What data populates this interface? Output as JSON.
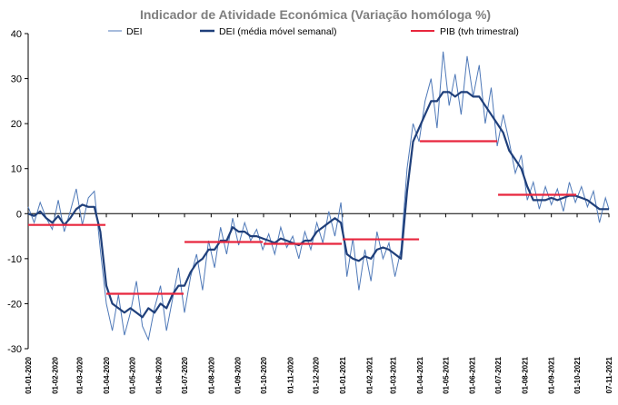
{
  "chart_data": {
    "type": "line",
    "title": "Indicador de Atividade Económica (Variação homóloga %)",
    "xlabel": "",
    "ylabel": "",
    "ylim": [
      -30,
      40
    ],
    "y_ticks": [
      -30,
      -20,
      -10,
      0,
      10,
      20,
      30,
      40
    ],
    "x_range": [
      "2020-01-01",
      "2021-11-07"
    ],
    "x_tick_labels": [
      "01-01-2020",
      "01-02-2020",
      "01-03-2020",
      "01-04-2020",
      "01-05-2020",
      "01-06-2020",
      "01-07-2020",
      "01-08-2020",
      "01-09-2020",
      "01-10-2020",
      "01-11-2020",
      "01-12-2020",
      "01-01-2021",
      "01-02-2021",
      "01-03-2021",
      "01-04-2021",
      "01-05-2021",
      "01-06-2021",
      "01-07-2021",
      "01-08-2021",
      "01-09-2021",
      "01-10-2021",
      "07-11-2021"
    ],
    "grid": false,
    "legend_position": "top",
    "series": [
      {
        "name": "DEI",
        "style": "thin-line",
        "color": "#4f79b8",
        "x": [
          "2020-01-01",
          "2020-01-08",
          "2020-01-15",
          "2020-01-22",
          "2020-01-29",
          "2020-02-05",
          "2020-02-12",
          "2020-02-19",
          "2020-02-26",
          "2020-03-04",
          "2020-03-11",
          "2020-03-18",
          "2020-03-25",
          "2020-04-01",
          "2020-04-08",
          "2020-04-15",
          "2020-04-22",
          "2020-04-29",
          "2020-05-06",
          "2020-05-13",
          "2020-05-20",
          "2020-05-27",
          "2020-06-03",
          "2020-06-10",
          "2020-06-17",
          "2020-06-24",
          "2020-07-01",
          "2020-07-08",
          "2020-07-15",
          "2020-07-22",
          "2020-07-29",
          "2020-08-05",
          "2020-08-12",
          "2020-08-19",
          "2020-08-26",
          "2020-09-02",
          "2020-09-09",
          "2020-09-16",
          "2020-09-23",
          "2020-09-30",
          "2020-10-07",
          "2020-10-14",
          "2020-10-21",
          "2020-10-28",
          "2020-11-04",
          "2020-11-11",
          "2020-11-18",
          "2020-11-25",
          "2020-12-02",
          "2020-12-09",
          "2020-12-16",
          "2020-12-23",
          "2020-12-30",
          "2021-01-06",
          "2021-01-13",
          "2021-01-20",
          "2021-01-27",
          "2021-02-03",
          "2021-02-10",
          "2021-02-17",
          "2021-02-24",
          "2021-03-03",
          "2021-03-10",
          "2021-03-17",
          "2021-03-24",
          "2021-03-31",
          "2021-04-07",
          "2021-04-14",
          "2021-04-21",
          "2021-04-28",
          "2021-05-05",
          "2021-05-12",
          "2021-05-19",
          "2021-05-26",
          "2021-06-02",
          "2021-06-09",
          "2021-06-16",
          "2021-06-23",
          "2021-06-30",
          "2021-07-07",
          "2021-07-14",
          "2021-07-21",
          "2021-07-28",
          "2021-08-04",
          "2021-08-11",
          "2021-08-18",
          "2021-08-25",
          "2021-09-01",
          "2021-09-08",
          "2021-09-15",
          "2021-09-22",
          "2021-09-29",
          "2021-10-06",
          "2021-10-13",
          "2021-10-20",
          "2021-10-27",
          "2021-11-03",
          "2021-11-07"
        ],
        "values": [
          1.5,
          -2.0,
          2.5,
          -1.0,
          -3.5,
          3.0,
          -4.0,
          0.5,
          5.5,
          -2.5,
          3.5,
          5.0,
          -8.0,
          -20.0,
          -26.0,
          -18.0,
          -27.0,
          -22.0,
          -15.0,
          -25.0,
          -28.0,
          -21.0,
          -16.0,
          -26.0,
          -19.0,
          -12.0,
          -22.0,
          -14.0,
          -9.0,
          -17.0,
          -6.0,
          -12.0,
          -3.0,
          -9.0,
          -1.0,
          -7.0,
          -2.0,
          -6.0,
          -3.5,
          -8.0,
          -4.5,
          -9.0,
          -3.0,
          -7.5,
          -5.0,
          -10.0,
          -4.0,
          -8.0,
          -2.0,
          -6.5,
          0.5,
          -5.0,
          2.5,
          -14.0,
          -5.5,
          -17.0,
          -8.0,
          -15.0,
          -4.0,
          -10.0,
          -6.5,
          -14.0,
          -8.0,
          10.0,
          20.0,
          16.0,
          25.0,
          30.0,
          19.0,
          36.0,
          24.0,
          31.0,
          22.0,
          35.0,
          26.0,
          33.0,
          20.0,
          28.0,
          15.0,
          22.0,
          16.0,
          9.0,
          13.0,
          3.0,
          7.0,
          1.0,
          6.0,
          2.0,
          5.5,
          0.5,
          7.0,
          2.5,
          6.0,
          1.5,
          5.0,
          -2.0,
          3.5,
          1.0
        ]
      },
      {
        "name": "DEI (média móvel semanal)",
        "style": "thick-line",
        "color": "#1f3f7a",
        "x": [
          "2020-01-01",
          "2020-01-08",
          "2020-01-15",
          "2020-01-22",
          "2020-01-29",
          "2020-02-05",
          "2020-02-12",
          "2020-02-19",
          "2020-02-26",
          "2020-03-04",
          "2020-03-11",
          "2020-03-18",
          "2020-03-25",
          "2020-04-01",
          "2020-04-08",
          "2020-04-15",
          "2020-04-22",
          "2020-04-29",
          "2020-05-06",
          "2020-05-13",
          "2020-05-20",
          "2020-05-27",
          "2020-06-03",
          "2020-06-10",
          "2020-06-17",
          "2020-06-24",
          "2020-07-01",
          "2020-07-08",
          "2020-07-15",
          "2020-07-22",
          "2020-07-29",
          "2020-08-05",
          "2020-08-12",
          "2020-08-19",
          "2020-08-26",
          "2020-09-02",
          "2020-09-09",
          "2020-09-16",
          "2020-09-23",
          "2020-09-30",
          "2020-10-07",
          "2020-10-14",
          "2020-10-21",
          "2020-10-28",
          "2020-11-04",
          "2020-11-11",
          "2020-11-18",
          "2020-11-25",
          "2020-12-02",
          "2020-12-09",
          "2020-12-16",
          "2020-12-23",
          "2020-12-30",
          "2021-01-06",
          "2021-01-13",
          "2021-01-20",
          "2021-01-27",
          "2021-02-03",
          "2021-02-10",
          "2021-02-17",
          "2021-02-24",
          "2021-03-03",
          "2021-03-10",
          "2021-03-17",
          "2021-03-24",
          "2021-03-31",
          "2021-04-07",
          "2021-04-14",
          "2021-04-21",
          "2021-04-28",
          "2021-05-05",
          "2021-05-12",
          "2021-05-19",
          "2021-05-26",
          "2021-06-02",
          "2021-06-09",
          "2021-06-16",
          "2021-06-23",
          "2021-06-30",
          "2021-07-07",
          "2021-07-14",
          "2021-07-21",
          "2021-07-28",
          "2021-08-04",
          "2021-08-11",
          "2021-08-18",
          "2021-08-25",
          "2021-09-01",
          "2021-09-08",
          "2021-09-15",
          "2021-09-22",
          "2021-09-29",
          "2021-10-06",
          "2021-10-13",
          "2021-10-20",
          "2021-10-27",
          "2021-11-03",
          "2021-11-07"
        ],
        "values": [
          0.0,
          -0.5,
          0.5,
          -1.0,
          -2.0,
          -0.5,
          -2.5,
          -1.0,
          1.0,
          2.0,
          1.5,
          1.5,
          -4.0,
          -16.0,
          -20.0,
          -21.0,
          -22.0,
          -21.0,
          -22.0,
          -23.0,
          -21.0,
          -22.0,
          -20.0,
          -21.0,
          -18.0,
          -16.0,
          -16.0,
          -13.0,
          -11.0,
          -10.0,
          -8.0,
          -8.0,
          -6.0,
          -6.0,
          -3.0,
          -4.0,
          -4.0,
          -5.0,
          -5.0,
          -5.5,
          -6.0,
          -6.5,
          -5.5,
          -6.0,
          -6.5,
          -7.0,
          -6.0,
          -6.0,
          -4.0,
          -3.0,
          -2.0,
          -1.0,
          -2.0,
          -9.0,
          -10.0,
          -10.5,
          -9.5,
          -10.0,
          -8.0,
          -7.5,
          -8.0,
          -9.0,
          -10.0,
          5.0,
          16.0,
          19.0,
          22.0,
          25.0,
          25.0,
          27.0,
          27.0,
          26.0,
          27.0,
          27.0,
          26.0,
          26.0,
          24.0,
          22.0,
          20.0,
          18.0,
          14.0,
          12.0,
          10.0,
          6.0,
          3.0,
          3.0,
          3.0,
          3.5,
          3.0,
          3.5,
          4.0,
          4.0,
          3.5,
          3.0,
          2.0,
          1.0,
          1.0,
          1.0
        ]
      },
      {
        "name": "PIB (tvh trimestral)",
        "style": "step",
        "color": "#e8263d",
        "segments": [
          {
            "start": "2020-01-01",
            "end": "2020-03-31",
            "value": -2.5
          },
          {
            "start": "2020-04-01",
            "end": "2020-06-30",
            "value": -17.8
          },
          {
            "start": "2020-07-01",
            "end": "2020-09-30",
            "value": -6.3
          },
          {
            "start": "2020-10-01",
            "end": "2020-12-31",
            "value": -6.7
          },
          {
            "start": "2021-01-01",
            "end": "2021-03-31",
            "value": -5.7
          },
          {
            "start": "2021-04-01",
            "end": "2021-06-30",
            "value": 16.1
          },
          {
            "start": "2021-07-01",
            "end": "2021-09-30",
            "value": 4.2
          }
        ]
      }
    ]
  }
}
